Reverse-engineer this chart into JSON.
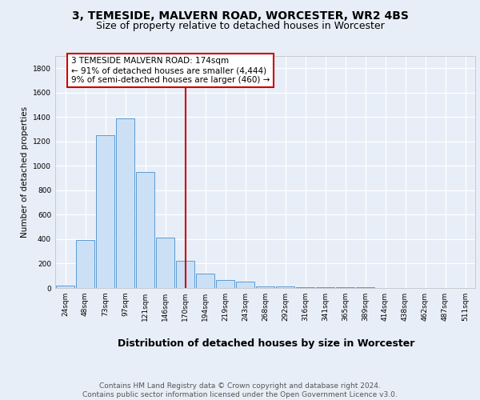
{
  "title_line1": "3, TEMESIDE, MALVERN ROAD, WORCESTER, WR2 4BS",
  "title_line2": "Size of property relative to detached houses in Worcester",
  "xlabel": "Distribution of detached houses by size in Worcester",
  "ylabel": "Number of detached properties",
  "footer_line1": "Contains HM Land Registry data © Crown copyright and database right 2024.",
  "footer_line2": "Contains public sector information licensed under the Open Government Licence v3.0.",
  "bin_labels": [
    "24sqm",
    "48sqm",
    "73sqm",
    "97sqm",
    "121sqm",
    "146sqm",
    "170sqm",
    "194sqm",
    "219sqm",
    "243sqm",
    "268sqm",
    "292sqm",
    "316sqm",
    "341sqm",
    "365sqm",
    "389sqm",
    "414sqm",
    "438sqm",
    "462sqm",
    "487sqm",
    "511sqm"
  ],
  "values": [
    20,
    390,
    1250,
    1390,
    950,
    410,
    225,
    120,
    65,
    50,
    15,
    10,
    5,
    5,
    8,
    5,
    0,
    0,
    0,
    0,
    0
  ],
  "bar_color": "#cce0f5",
  "bar_edge_color": "#5b9bd5",
  "vline_x_index": 6,
  "vline_color": "#cc0000",
  "annotation_text": "3 TEMESIDE MALVERN ROAD: 174sqm\n← 91% of detached houses are smaller (4,444)\n9% of semi-detached houses are larger (460) →",
  "annotation_box_color": "#ffffff",
  "annotation_box_edge": "#cc0000",
  "ylim": [
    0,
    1900
  ],
  "yticks": [
    0,
    200,
    400,
    600,
    800,
    1000,
    1200,
    1400,
    1600,
    1800
  ],
  "background_color": "#e8eef7",
  "plot_bg_color": "#e8eef7",
  "grid_color": "#ffffff",
  "title1_fontsize": 10,
  "title2_fontsize": 9,
  "footer_fontsize": 6.5,
  "ylabel_fontsize": 7.5,
  "xlabel_fontsize": 9,
  "tick_fontsize": 6.5,
  "ann_fontsize": 7.5
}
